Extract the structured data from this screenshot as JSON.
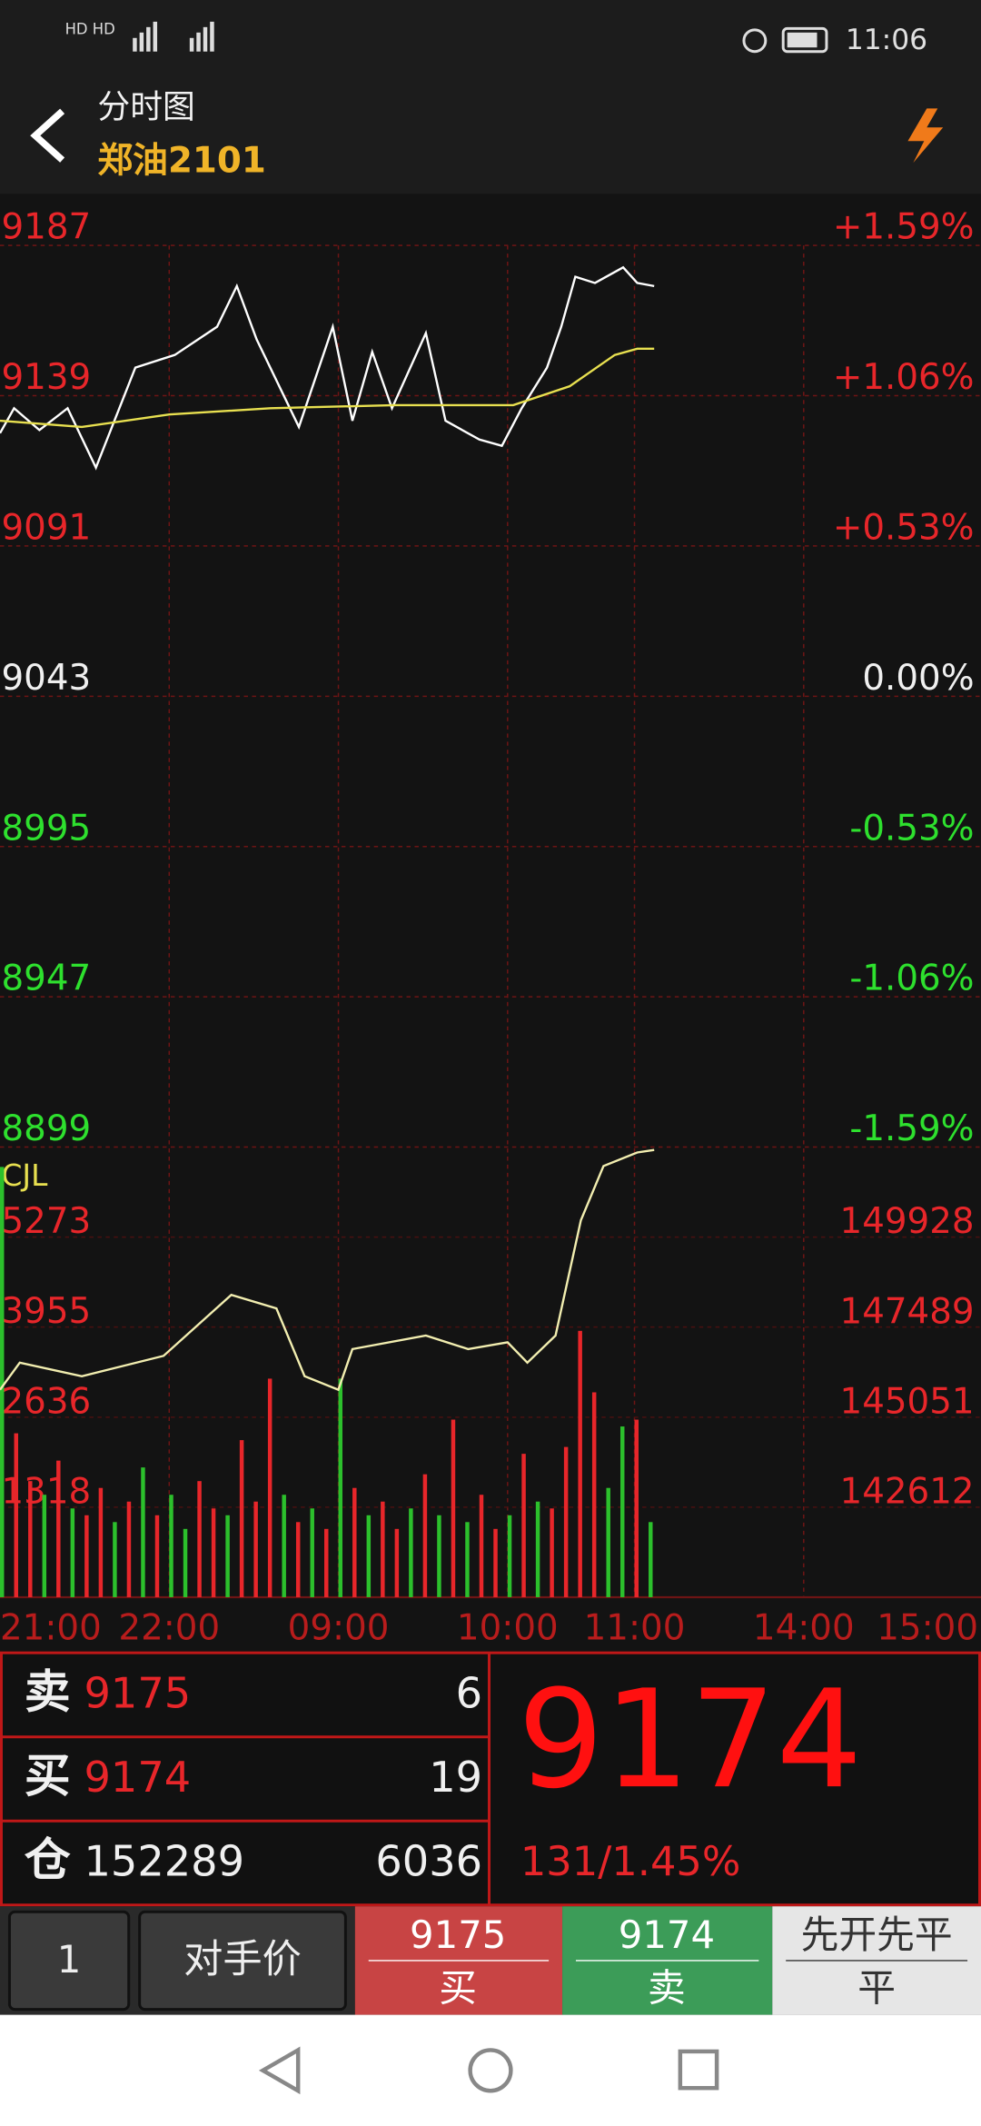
{
  "status_bar": {
    "time": "11:06"
  },
  "header": {
    "title": "分时图",
    "symbol": "郑油2101"
  },
  "chart_data": [
    {
      "type": "line",
      "xlim": [
        0,
        345
      ],
      "ylim": [
        8899,
        9187
      ],
      "yticks": [
        9187,
        9139,
        9091,
        9043,
        8995,
        8947,
        8899
      ],
      "y2lim": [
        -1.59,
        1.59
      ],
      "y2ticks": [
        {
          "value": 1.59,
          "label": "+1.59%"
        },
        {
          "value": 1.06,
          "label": "+1.06%"
        },
        {
          "value": 0.53,
          "label": "+0.53%"
        },
        {
          "value": 0,
          "label": "0.00%"
        },
        {
          "value": -0.53,
          "label": "-0.53%"
        },
        {
          "value": -1.06,
          "label": "-1.06%"
        },
        {
          "value": -1.59,
          "label": "-1.59%"
        }
      ],
      "grid": true,
      "series": [
        {
          "color": "#ffffff",
          "x": [
            0,
            5,
            14,
            24,
            34,
            48,
            62,
            77,
            84,
            91,
            106,
            118,
            125,
            132,
            139,
            151,
            158,
            170,
            178,
            185,
            194,
            199,
            204,
            211,
            221,
            226,
            232
          ],
          "values": [
            9127,
            9135,
            9128,
            9135,
            9116,
            9148,
            9152,
            9161,
            9174,
            9157,
            9129,
            9161,
            9131,
            9153,
            9135,
            9159,
            9131,
            9125,
            9123,
            9135,
            9148,
            9161,
            9177,
            9175,
            9180,
            9175,
            9174
          ]
        },
        {
          "color": "#e8e050",
          "x": [
            0,
            29,
            60,
            96,
            140,
            182,
            202,
            218,
            226,
            232
          ],
          "values": [
            9131,
            9129,
            9133,
            9135,
            9136,
            9136,
            9142,
            9152,
            9154,
            9154
          ]
        }
      ]
    },
    {
      "type": "bar",
      "label": "CJL",
      "xlim": [
        0,
        345
      ],
      "xticks": [
        {
          "value": 0,
          "label": "21:00"
        },
        {
          "value": 60,
          "label": "22:00"
        },
        {
          "value": 120,
          "label": "09:00"
        },
        {
          "value": 180,
          "label": "10:00"
        },
        {
          "value": 225,
          "label": "11:00"
        },
        {
          "value": 285,
          "label": "14:00"
        },
        {
          "value": 345,
          "label": "15:00"
        }
      ],
      "ylim": [
        0,
        6591
      ],
      "yticks": [
        1318,
        2636,
        3955,
        5273
      ],
      "y2lim": [
        140173,
        152367
      ],
      "y2ticks": [
        142612,
        145051,
        147489,
        149928
      ],
      "x": [
        0,
        5,
        10,
        15,
        20,
        25,
        30,
        35,
        40,
        45,
        50,
        55,
        60,
        65,
        70,
        75,
        80,
        85,
        90,
        95,
        100,
        105,
        110,
        115,
        120,
        125,
        130,
        135,
        140,
        145,
        150,
        155,
        160,
        165,
        170,
        175,
        180,
        185,
        190,
        195,
        200,
        205,
        210,
        215,
        220,
        225,
        230
      ],
      "values": [
        6300,
        2400,
        1700,
        1500,
        2000,
        1300,
        1200,
        1600,
        1100,
        1400,
        1900,
        1200,
        1500,
        1000,
        1700,
        1300,
        1200,
        2300,
        1400,
        3200,
        1500,
        1100,
        1300,
        1000,
        3200,
        1600,
        1200,
        1400,
        1000,
        1300,
        1800,
        1200,
        2600,
        1100,
        1500,
        1000,
        1200,
        2100,
        1400,
        1300,
        2200,
        3900,
        3000,
        1600,
        2500,
        2600,
        1100
      ],
      "bar_colors": [
        "#2cc02c",
        "#e8262a",
        "#e8262a",
        "#2cc02c",
        "#e8262a",
        "#2cc02c",
        "#e8262a",
        "#e8262a",
        "#2cc02c",
        "#e8262a",
        "#2cc02c",
        "#e8262a",
        "#2cc02c",
        "#2cc02c",
        "#e8262a",
        "#e8262a",
        "#2cc02c",
        "#e8262a",
        "#e8262a",
        "#e8262a",
        "#2cc02c",
        "#e8262a",
        "#2cc02c",
        "#e8262a",
        "#2cc02c",
        "#e8262a",
        "#2cc02c",
        "#e8262a",
        "#e8262a",
        "#2cc02c",
        "#e8262a",
        "#2cc02c",
        "#e8262a",
        "#2cc02c",
        "#e8262a",
        "#e8262a",
        "#2cc02c",
        "#e8262a",
        "#2cc02c",
        "#e8262a",
        "#e8262a",
        "#e8262a",
        "#e8262a",
        "#2cc02c",
        "#2cc02c",
        "#e8262a",
        "#2cc02c"
      ],
      "series": [
        {
          "color": "#f2eeb0",
          "axis": "y2",
          "x": [
            0,
            7,
            29,
            58,
            82,
            98,
            108,
            120,
            125,
            151,
            166,
            180,
            187,
            197,
            206,
            214,
            226,
            232
          ],
          "values": [
            145793,
            146527,
            146160,
            146711,
            148364,
            147996,
            146160,
            145793,
            146895,
            147262,
            146895,
            147078,
            146527,
            147262,
            150384,
            151853,
            152220,
            152289
          ]
        }
      ]
    }
  ],
  "quote": {
    "sell_label": "卖",
    "sell_price": "9175",
    "sell_qty": "6",
    "buy_label": "买",
    "buy_price": "9174",
    "buy_qty": "19",
    "oi_label": "仓",
    "open_interest": "152289",
    "oi_change": "6036",
    "last": "9174",
    "change": "131/1.45%"
  },
  "trade_bar": {
    "qty": "1",
    "price_type": "对手价",
    "buy_price": "9175",
    "buy": "买",
    "sell_price": "9174",
    "sell": "卖",
    "mode": "先开先平",
    "close": "平"
  }
}
